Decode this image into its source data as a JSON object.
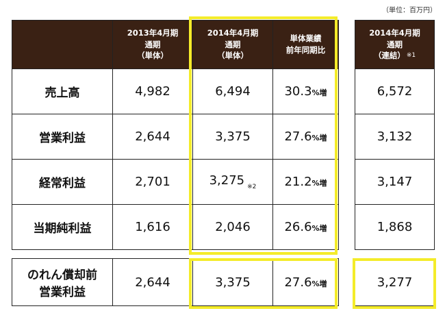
{
  "unit_note": "（単位：百万円）",
  "header": {
    "col1": [
      "2013年4月期",
      "通期",
      "（単体）"
    ],
    "col2": [
      "2014年4月期",
      "通期",
      "（単体）"
    ],
    "col3": [
      "単体業績",
      "前年同期比"
    ],
    "col4": [
      "2014年4月期",
      "通期",
      "（連結）"
    ],
    "col4_note": "※1"
  },
  "rows": [
    {
      "label": "売上高",
      "fy2013": "4,982",
      "fy2014": "6,494",
      "pct": "30.3",
      "pct_suffix": "%増",
      "consolidated": "6,572"
    },
    {
      "label": "営業利益",
      "fy2013": "2,644",
      "fy2014": "3,375",
      "pct": "27.6",
      "pct_suffix": "%増",
      "consolidated": "3,132"
    },
    {
      "label": "経常利益",
      "fy2013": "2,701",
      "fy2014": "3,275",
      "fy2014_note": "※2",
      "pct": "21.2",
      "pct_suffix": "%増",
      "consolidated": "3,147"
    },
    {
      "label": "当期純利益",
      "fy2013": "1,616",
      "fy2014": "2,046",
      "pct": "26.6",
      "pct_suffix": "%増",
      "consolidated": "1,868"
    }
  ],
  "bottom_row": {
    "label_line1": "のれん償却前",
    "label_line2": "営業利益",
    "fy2013": "2,644",
    "fy2014": "3,375",
    "pct": "27.6",
    "pct_suffix": "%増",
    "consolidated": "3,277"
  },
  "colors": {
    "header_bg": "#3a2114",
    "highlight": "#f4ec2a",
    "border": "#222222"
  }
}
